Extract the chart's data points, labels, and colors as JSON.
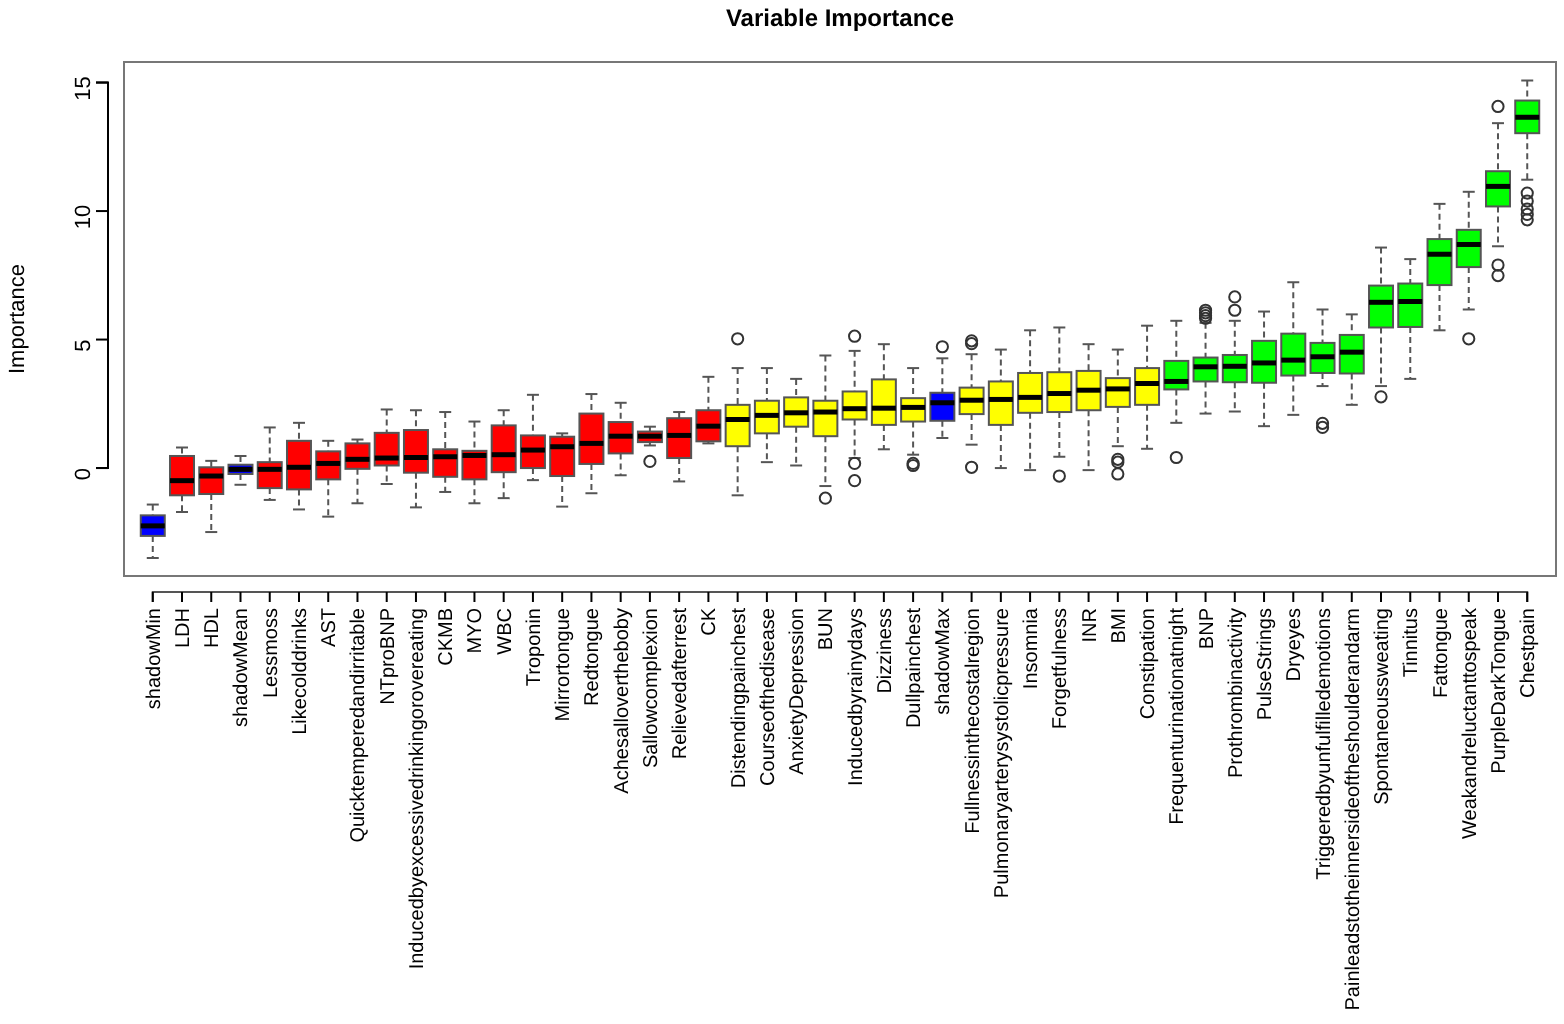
{
  "chart_data": {
    "type": "box",
    "title": "Variable Importance",
    "ylabel": "Importance",
    "categories": [
      "shadowMin",
      "LDH",
      "HDL",
      "shadowMean",
      "Lessmoss",
      "Likecolddrinks",
      "AST",
      "Quicktemperedandirritable",
      "NTproBNP",
      "Inducedbyexcessivedrinkingorovereating",
      "CKMB",
      "MYO",
      "WBC",
      "Troponin",
      "Mirrortongue",
      "Redtongue",
      "Achesallovertheboby",
      "Sallowcomplexion",
      "Relievedafterrest",
      "CK",
      "Distendingpainchest",
      "Courseofthedisease",
      "AnxietyDepression",
      "BUN",
      "Inducedbyrainydays",
      "Dizziness",
      "Dullpainchest",
      "shadowMax",
      "Fullnessinthecostalregion",
      "Pulmonaryarterysystolicpressure",
      "Insomnia",
      "Forgetfulness",
      "INR",
      "BMI",
      "Constipation",
      "Frequenturinationatnight",
      "BNP",
      "Prothrombinactivity",
      "PulseStrings",
      "Dryeyes",
      "Triggeredbyunfulfilledemotions",
      "Painleadstotheinnersideoftheshoulderandarm",
      "Spontaneoussweating",
      "Tinnitus",
      "Fattongue",
      "Weakandreluctanttospeak",
      "PurpleDarkTongue",
      "Chestpain"
    ],
    "colors": [
      "#0000ff",
      "#ff0000",
      "#ff0000",
      "#0000ff",
      "#ff0000",
      "#ff0000",
      "#ff0000",
      "#ff0000",
      "#ff0000",
      "#ff0000",
      "#ff0000",
      "#ff0000",
      "#ff0000",
      "#ff0000",
      "#ff0000",
      "#ff0000",
      "#ff0000",
      "#ff0000",
      "#ff0000",
      "#ff0000",
      "#ffff00",
      "#ffff00",
      "#ffff00",
      "#ffff00",
      "#ffff00",
      "#ffff00",
      "#ffff00",
      "#0000ff",
      "#ffff00",
      "#ffff00",
      "#ffff00",
      "#ffff00",
      "#ffff00",
      "#ffff00",
      "#ffff00",
      "#00ff00",
      "#00ff00",
      "#00ff00",
      "#00ff00",
      "#00ff00",
      "#00ff00",
      "#00ff00",
      "#00ff00",
      "#00ff00",
      "#00ff00",
      "#00ff00",
      "#00ff00",
      "#00ff00"
    ],
    "boxes": [
      {
        "low": -3.5,
        "q1": -2.64,
        "median": -2.25,
        "q3": -1.84,
        "high": -1.42
      },
      {
        "low": -1.71,
        "q1": -1.06,
        "median": -0.49,
        "q3": 0.47,
        "high": 0.8
      },
      {
        "low": -2.49,
        "q1": -1.01,
        "median": -0.31,
        "q3": 0.03,
        "high": 0.28
      },
      {
        "low": -0.65,
        "q1": -0.23,
        "median": -0.05,
        "q3": 0.13,
        "high": 0.47
      },
      {
        "low": -1.24,
        "q1": -0.78,
        "median": -0.05,
        "q3": 0.23,
        "high": 1.58
      },
      {
        "low": -1.61,
        "q1": -0.83,
        "median": 0.03,
        "q3": 1.06,
        "high": 1.76
      },
      {
        "low": -1.89,
        "q1": -0.44,
        "median": 0.18,
        "q3": 0.65,
        "high": 1.06
      },
      {
        "low": -1.37,
        "q1": -0.03,
        "median": 0.34,
        "q3": 0.96,
        "high": 1.11
      },
      {
        "low": -0.62,
        "q1": 0.1,
        "median": 0.39,
        "q3": 1.37,
        "high": 2.28
      },
      {
        "low": -1.53,
        "q1": -0.18,
        "median": 0.41,
        "q3": 1.48,
        "high": 2.25
      },
      {
        "low": -0.93,
        "q1": -0.34,
        "median": 0.44,
        "q3": 0.73,
        "high": 2.18
      },
      {
        "low": -1.37,
        "q1": -0.44,
        "median": 0.49,
        "q3": 0.67,
        "high": 1.81
      },
      {
        "low": -1.17,
        "q1": -0.16,
        "median": 0.52,
        "q3": 1.66,
        "high": 2.25
      },
      {
        "low": -0.47,
        "q1": 0.0,
        "median": 0.7,
        "q3": 1.27,
        "high": 2.85
      },
      {
        "low": -1.5,
        "q1": -0.31,
        "median": 0.83,
        "q3": 1.22,
        "high": 1.35
      },
      {
        "low": -0.98,
        "q1": 0.16,
        "median": 0.96,
        "q3": 2.12,
        "high": 2.88
      },
      {
        "low": -0.28,
        "q1": 0.57,
        "median": 1.24,
        "q3": 1.79,
        "high": 2.54
      },
      {
        "low": 0.88,
        "q1": 1.01,
        "median": 1.24,
        "q3": 1.42,
        "high": 1.61,
        "outliers": [
          0.26
        ]
      },
      {
        "low": -0.52,
        "q1": 0.39,
        "median": 1.27,
        "q3": 1.94,
        "high": 2.18
      },
      {
        "low": 0.96,
        "q1": 1.04,
        "median": 1.63,
        "q3": 2.25,
        "high": 3.55
      },
      {
        "low": -1.06,
        "q1": 0.85,
        "median": 1.89,
        "q3": 2.46,
        "high": 3.89,
        "outliers": [
          5.03
        ]
      },
      {
        "low": 0.23,
        "q1": 1.35,
        "median": 2.05,
        "q3": 2.62,
        "high": 3.89
      },
      {
        "low": 0.1,
        "q1": 1.61,
        "median": 2.15,
        "q3": 2.75,
        "high": 3.47
      },
      {
        "low": -0.7,
        "q1": 1.24,
        "median": 2.18,
        "q3": 2.62,
        "high": 4.38,
        "outliers": [
          -1.17
        ]
      },
      {
        "low": 0.39,
        "q1": 1.89,
        "median": 2.31,
        "q3": 2.98,
        "high": 4.56,
        "outliers": [
          5.13,
          0.18,
          -0.49
        ]
      },
      {
        "low": 0.73,
        "q1": 1.68,
        "median": 2.33,
        "q3": 3.45,
        "high": 4.82
      },
      {
        "low": 0.52,
        "q1": 1.81,
        "median": 2.36,
        "q3": 2.72,
        "high": 3.89,
        "outliers": [
          0.18,
          0.1
        ]
      },
      {
        "low": 1.17,
        "q1": 1.84,
        "median": 2.54,
        "q3": 2.93,
        "high": 4.27,
        "outliers": [
          4.72
        ]
      },
      {
        "low": 0.91,
        "q1": 2.1,
        "median": 2.64,
        "q3": 3.13,
        "high": 4.43,
        "outliers": [
          4.95,
          4.84,
          0.03
        ]
      },
      {
        "low": 0.0,
        "q1": 1.68,
        "median": 2.67,
        "q3": 3.37,
        "high": 4.61
      },
      {
        "low": -0.08,
        "q1": 2.15,
        "median": 2.75,
        "q3": 3.7,
        "high": 5.36
      },
      {
        "low": 0.44,
        "q1": 2.18,
        "median": 2.9,
        "q3": 3.73,
        "high": 5.47,
        "outliers": [
          -0.31
        ]
      },
      {
        "low": -0.08,
        "q1": 2.25,
        "median": 3.03,
        "q3": 3.78,
        "high": 4.82
      },
      {
        "low": 0.85,
        "q1": 2.38,
        "median": 3.08,
        "q3": 3.5,
        "high": 4.61,
        "outliers": [
          0.34,
          0.23,
          -0.23
        ]
      },
      {
        "low": 0.75,
        "q1": 2.46,
        "median": 3.29,
        "q3": 3.89,
        "high": 5.54
      },
      {
        "low": 1.76,
        "q1": 3.06,
        "median": 3.37,
        "q3": 4.17,
        "high": 5.73,
        "outliers": [
          0.41
        ]
      },
      {
        "low": 2.12,
        "q1": 3.37,
        "median": 3.94,
        "q3": 4.3,
        "high": 5.65,
        "outliers": [
          6.14,
          6.04,
          5.93,
          5.83
        ]
      },
      {
        "low": 2.2,
        "q1": 3.34,
        "median": 3.96,
        "q3": 4.4,
        "high": 5.73,
        "outliers": [
          6.66,
          6.14
        ]
      },
      {
        "low": 1.63,
        "q1": 3.32,
        "median": 4.09,
        "q3": 4.95,
        "high": 6.09
      },
      {
        "low": 2.07,
        "q1": 3.6,
        "median": 4.2,
        "q3": 5.23,
        "high": 7.23
      },
      {
        "low": 3.19,
        "q1": 3.7,
        "median": 4.33,
        "q3": 4.87,
        "high": 6.17,
        "outliers": [
          1.74,
          1.58
        ]
      },
      {
        "low": 2.46,
        "q1": 3.68,
        "median": 4.51,
        "q3": 5.18,
        "high": 5.98
      },
      {
        "low": 3.19,
        "q1": 5.47,
        "median": 6.45,
        "q3": 7.1,
        "high": 8.58,
        "outliers": [
          2.77
        ]
      },
      {
        "low": 3.47,
        "q1": 5.49,
        "median": 6.48,
        "q3": 7.18,
        "high": 8.13
      },
      {
        "low": 5.36,
        "q1": 7.12,
        "median": 8.32,
        "q3": 8.91,
        "high": 10.28
      },
      {
        "low": 6.17,
        "q1": 7.82,
        "median": 8.7,
        "q3": 9.27,
        "high": 10.75,
        "outliers": [
          5.03
        ]
      },
      {
        "low": 8.63,
        "q1": 10.18,
        "median": 10.96,
        "q3": 11.55,
        "high": 13.42,
        "outliers": [
          14.07,
          7.9,
          7.49
        ]
      },
      {
        "low": 11.22,
        "q1": 13.03,
        "median": 13.65,
        "q3": 14.3,
        "high": 15.08,
        "outliers": [
          10.7,
          10.39,
          10.08,
          9.87,
          9.66
        ]
      }
    ],
    "ylim": [
      -4.2,
      15.8
    ],
    "yticks": [
      0,
      5,
      10,
      15
    ]
  }
}
